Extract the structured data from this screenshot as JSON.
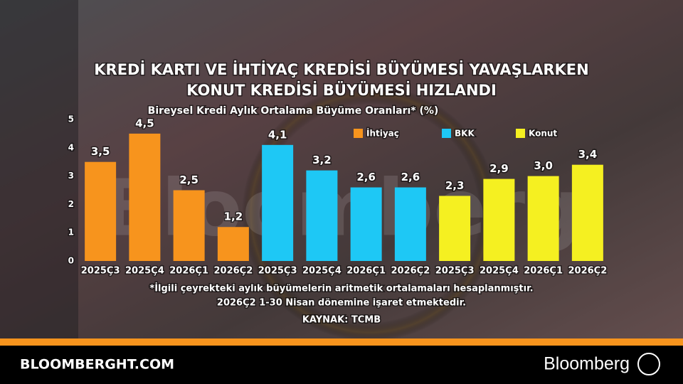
{
  "chart_data": {
    "type": "bar",
    "title": [
      "KREDİ KARTI VE İHTİYAÇ KREDİSİ BÜYÜMESİ YAVAŞLARKEN",
      "KONUT KREDİSİ BÜYÜMESİ HIZLANDI"
    ],
    "subtitle": "Bireysel Kredi Aylık Ortalama Büyüme Oranları* (%)",
    "categories": [
      "2025Ç3",
      "2025Ç4",
      "2026Ç1",
      "2026Ç2",
      "2025Ç3",
      "2025Ç4",
      "2026Ç1",
      "2026Ç2",
      "2025Ç3",
      "2025Ç4",
      "2026Ç1",
      "2026Ç2"
    ],
    "series": [
      {
        "name": "İhtiyaç",
        "color": "#f7941d",
        "values": [
          3.5,
          4.5,
          2.5,
          1.2,
          null,
          null,
          null,
          null,
          null,
          null,
          null,
          null
        ],
        "value_labels": [
          "3,5",
          "4,5",
          "2,5",
          "1,2",
          null,
          null,
          null,
          null,
          null,
          null,
          null,
          null
        ]
      },
      {
        "name": "BKK",
        "color": "#1ec8f5",
        "values": [
          null,
          null,
          null,
          null,
          4.1,
          3.2,
          2.6,
          2.6,
          null,
          null,
          null,
          null
        ],
        "value_labels": [
          null,
          null,
          null,
          null,
          "4,1",
          "3,2",
          "2,6",
          "2,6",
          null,
          null,
          null,
          null
        ]
      },
      {
        "name": "Konut",
        "color": "#f5f021",
        "values": [
          null,
          null,
          null,
          null,
          null,
          null,
          null,
          null,
          2.3,
          2.9,
          3.0,
          3.4
        ],
        "value_labels": [
          null,
          null,
          null,
          null,
          null,
          null,
          null,
          null,
          "2,3",
          "2,9",
          "3,0",
          "3,4"
        ]
      }
    ],
    "ylim": [
      0,
      5
    ],
    "yticks": [
      0,
      1,
      2,
      3,
      4,
      5
    ],
    "notes": [
      "*İlgili çeyrekteki aylık büyümelerin aritmetik ortalamaları hesaplanmıştır.",
      "2026Ç2 1-30 Nisan dönemine işaret etmektedir."
    ],
    "source": "KAYNAK: TCMB",
    "watermark": "Bloomberg"
  },
  "footer": {
    "site": "BLOOMBERGHT.COM",
    "brand": "Bloomberg"
  }
}
